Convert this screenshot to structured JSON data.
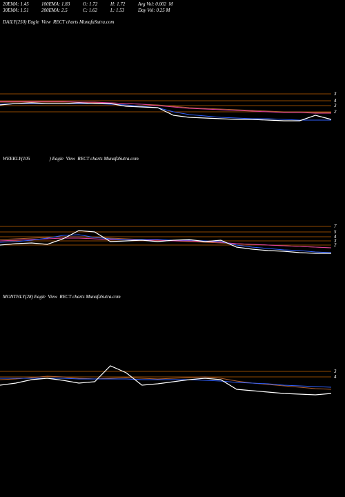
{
  "header": {
    "rows": [
      [
        "20EMA: 1.45",
        "100EMA: 1.83",
        "O: 1.72",
        "H: 1.72",
        "Avg Vol: 0.002  M"
      ],
      [
        "30EMA: 1.51",
        "200EMA: 2.5",
        "C: 1.62",
        "L: 1.53",
        "Day Vol: 0.25 M"
      ]
    ]
  },
  "chart_data": [
    {
      "type": "line",
      "title": "DAILY(250) Eagle  View  RECT charts MunafaSutra.com",
      "ylim": [
        0,
        10
      ],
      "levels": [
        {
          "value": 6.4,
          "label": "3"
        },
        {
          "value": 5.4,
          "label": "4"
        },
        {
          "value": 4.7,
          "label": "3"
        },
        {
          "value": 3.8,
          "label": "2"
        }
      ],
      "level_color": "#c06000",
      "series": [
        {
          "color": "#b06030",
          "values": [
            5.2,
            5.2,
            5.2,
            5.2,
            5.2,
            5.2,
            5.1,
            5.1,
            5.0,
            4.9,
            4.8,
            4.6,
            4.4,
            4.3,
            4.2,
            4.1,
            4.0,
            3.9,
            3.8,
            3.8,
            3.7,
            3.7
          ]
        },
        {
          "color": "#e040a0",
          "values": [
            5.3,
            5.3,
            5.3,
            5.3,
            5.3,
            5.2,
            5.2,
            5.1,
            5.0,
            4.9,
            4.7,
            4.5,
            4.3,
            4.2,
            4.1,
            4.0,
            3.9,
            3.8,
            3.7,
            3.7,
            3.6,
            3.6
          ]
        },
        {
          "color": "#3060ff",
          "values": [
            4.9,
            5.0,
            5.0,
            5.0,
            5.0,
            5.0,
            5.0,
            4.9,
            4.8,
            4.6,
            4.4,
            3.8,
            3.4,
            3.2,
            3.0,
            2.9,
            2.8,
            2.8,
            2.7,
            2.6,
            2.6,
            2.6
          ]
        },
        {
          "color": "#ffffff",
          "values": [
            4.8,
            5.0,
            5.1,
            5.0,
            5.0,
            5.1,
            5.0,
            5.0,
            4.6,
            4.5,
            4.4,
            3.3,
            3.0,
            2.9,
            2.8,
            2.7,
            2.7,
            2.6,
            2.5,
            2.5,
            3.3,
            2.7
          ]
        }
      ]
    },
    {
      "type": "line",
      "title": "WEEKLY(105                ) Eagle  View  RECT charts MunafaSutra.com",
      "ylim": [
        0,
        10
      ],
      "levels": [
        {
          "value": 7.2,
          "label": "7"
        },
        {
          "value": 6.4,
          "label": "5"
        },
        {
          "value": 5.7,
          "label": "4"
        },
        {
          "value": 5.1,
          "label": "3"
        },
        {
          "value": 4.5,
          "label": "2"
        }
      ],
      "level_color": "#c06000",
      "series": [
        {
          "color": "#b06030",
          "values": [
            5.3,
            5.4,
            5.5,
            5.6,
            5.7,
            5.7,
            5.6,
            5.5,
            5.4,
            5.3,
            5.2,
            5.1,
            5.0,
            4.9,
            4.8,
            4.7,
            4.6,
            4.5,
            4.4,
            4.3,
            4.2,
            4.1
          ]
        },
        {
          "color": "#e040a0",
          "values": [
            5.1,
            5.2,
            5.3,
            5.4,
            5.5,
            5.5,
            5.4,
            5.3,
            5.3,
            5.2,
            5.2,
            5.1,
            5.1,
            5.0,
            4.9,
            4.7,
            4.6,
            4.5,
            4.4,
            4.3,
            4.2,
            4.1
          ]
        },
        {
          "color": "#3060ff",
          "values": [
            4.9,
            5.0,
            5.2,
            5.5,
            5.9,
            6.0,
            5.6,
            5.4,
            5.3,
            5.3,
            5.3,
            5.2,
            5.2,
            5.1,
            5.0,
            4.5,
            4.2,
            4.0,
            3.8,
            3.7,
            3.5,
            3.4
          ]
        },
        {
          "color": "#ffffff",
          "values": [
            4.5,
            4.7,
            4.8,
            4.6,
            5.4,
            6.6,
            6.4,
            5.0,
            5.1,
            5.2,
            5.0,
            5.2,
            5.3,
            5.0,
            5.2,
            4.2,
            3.9,
            3.7,
            3.6,
            3.4,
            3.3,
            3.3
          ]
        }
      ]
    },
    {
      "type": "line",
      "title": "MONTHLY(28) Eagle  View  RECT charts MunafaSutra.com",
      "ylim": [
        0,
        10
      ],
      "levels": [
        {
          "value": 6.2,
          "label": "3"
        },
        {
          "value": 5.4,
          "label": "4"
        }
      ],
      "level_color": "#c06000",
      "series": [
        {
          "color": "#b06030",
          "values": [
            5.0,
            5.1,
            5.3,
            5.5,
            5.4,
            5.2,
            5.1,
            5.2,
            5.3,
            5.2,
            5.1,
            5.2,
            5.3,
            5.4,
            5.2,
            4.8,
            4.5,
            4.3,
            4.1,
            3.9,
            3.7,
            3.6
          ]
        },
        {
          "color": "#3060ff",
          "values": [
            5.2,
            5.2,
            5.2,
            5.2,
            5.2,
            5.1,
            5.1,
            5.1,
            5.1,
            5.0,
            5.0,
            5.0,
            5.0,
            4.9,
            4.8,
            4.6,
            4.5,
            4.4,
            4.2,
            4.1,
            4.0,
            3.9
          ]
        },
        {
          "color": "#ffffff",
          "values": [
            4.2,
            4.5,
            5.0,
            5.2,
            4.9,
            4.5,
            4.7,
            7.0,
            6.0,
            4.2,
            4.4,
            4.7,
            5.0,
            5.2,
            5.0,
            3.6,
            3.4,
            3.2,
            3.0,
            2.9,
            2.8,
            3.0
          ]
        }
      ]
    }
  ]
}
